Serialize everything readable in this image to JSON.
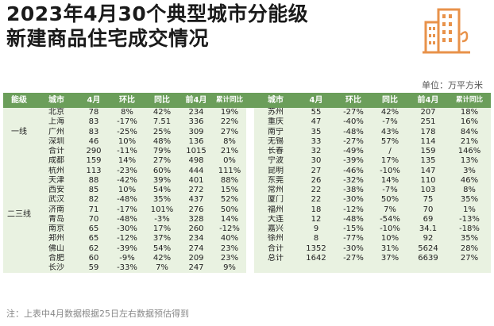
{
  "title_line1": "2023年4月30个典型城市分能级",
  "title_line2": "新建商品住宅成交情况",
  "unit": "单位：万平方米",
  "note": "注：上表中4月数据根据25日左右数据预估得到",
  "colors": {
    "header": "#6b9e5a",
    "row": "#e9f2e1",
    "logo": "#e8924a"
  },
  "logo_icon": "city-buildings-icon",
  "headers": [
    "能级",
    "城市",
    "4月",
    "环比",
    "同比",
    "前4月",
    "累计同比"
  ],
  "levels": {
    "tier1": "一线",
    "tier23": "二三线"
  },
  "left_rows": [
    [
      "北京",
      "78",
      "8%",
      "42%",
      "234",
      "19%"
    ],
    [
      "上海",
      "83",
      "-17%",
      "7.51",
      "336",
      "22%"
    ],
    [
      "广州",
      "83",
      "-25%",
      "25%",
      "309",
      "27%"
    ],
    [
      "深圳",
      "46",
      "10%",
      "48%",
      "136",
      "8%"
    ],
    [
      "合计",
      "290",
      "-11%",
      "79%",
      "1015",
      "21%"
    ],
    [
      "成都",
      "159",
      "14%",
      "27%",
      "498",
      "0%"
    ],
    [
      "杭州",
      "113",
      "-23%",
      "60%",
      "444",
      "111%"
    ],
    [
      "天津",
      "88",
      "-42%",
      "39%",
      "401",
      "88%"
    ],
    [
      "西安",
      "85",
      "10%",
      "54%",
      "272",
      "15%"
    ],
    [
      "武汉",
      "82",
      "-48%",
      "35%",
      "437",
      "52%"
    ],
    [
      "济南",
      "71",
      "-17%",
      "101%",
      "276",
      "50%"
    ],
    [
      "青岛",
      "70",
      "-48%",
      "-3%",
      "328",
      "14%"
    ],
    [
      "南京",
      "65",
      "-30%",
      "17%",
      "260",
      "-12%"
    ],
    [
      "郑州",
      "65",
      "-12%",
      "37%",
      "234",
      "40%"
    ],
    [
      "佛山",
      "62",
      "-39%",
      "54%",
      "274",
      "23%"
    ],
    [
      "合肥",
      "60",
      "-9%",
      "42%",
      "209",
      "23%"
    ],
    [
      "长沙",
      "59",
      "-33%",
      "7%",
      "247",
      "9%"
    ]
  ],
  "right_rows": [
    [
      "苏州",
      "55",
      "-27%",
      "42%",
      "207",
      "18%"
    ],
    [
      "重庆",
      "47",
      "-40%",
      "-7%",
      "251",
      "16%"
    ],
    [
      "南宁",
      "35",
      "-48%",
      "43%",
      "178",
      "84%"
    ],
    [
      "无锡",
      "33",
      "-27%",
      "57%",
      "114",
      "21%"
    ],
    [
      "长春",
      "32",
      "-49%",
      "/",
      "159",
      "146%"
    ],
    [
      "宁波",
      "30",
      "-39%",
      "17%",
      "135",
      "13%"
    ],
    [
      "昆明",
      "27",
      "-46%",
      "-10%",
      "147",
      "3%"
    ],
    [
      "东莞",
      "26",
      "-32%",
      "14%",
      "110",
      "46%"
    ],
    [
      "常州",
      "22",
      "-38%",
      "-7%",
      "103",
      "8%"
    ],
    [
      "厦门",
      "22",
      "-30%",
      "50%",
      "75",
      "35%"
    ],
    [
      "福州",
      "18",
      "-12%",
      "7%",
      "70",
      "1%"
    ],
    [
      "大连",
      "12",
      "-48%",
      "-54%",
      "69",
      "-13%"
    ],
    [
      "嘉兴",
      "9",
      "-15%",
      "-10%",
      "34.1",
      "-18%"
    ],
    [
      "徐州",
      "8",
      "-77%",
      "10%",
      "92",
      "35%"
    ],
    [
      "合计",
      "1352",
      "-30%",
      "31%",
      "5624",
      "28%"
    ],
    [
      "总计",
      "1642",
      "-27%",
      "37%",
      "6639",
      "27%"
    ]
  ]
}
